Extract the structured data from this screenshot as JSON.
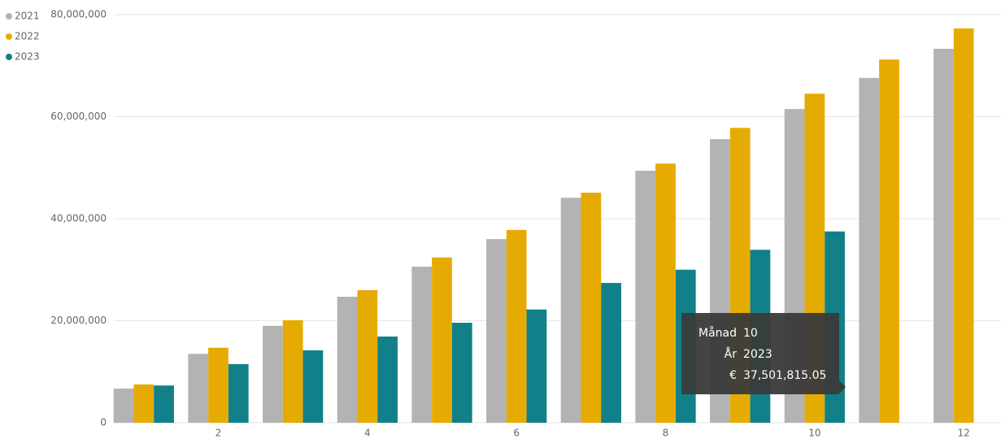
{
  "chart_data": {
    "type": "bar",
    "categories": [
      null,
      "2",
      null,
      "4",
      null,
      "6",
      null,
      "8",
      null,
      "10",
      null,
      "12"
    ],
    "series": [
      {
        "name": "2021",
        "color": "#b3b3b3",
        "values": [
          6700000,
          13500000,
          19000000,
          24700000,
          30600000,
          36000000,
          44100000,
          49400000,
          55600000,
          61500000,
          67600000,
          73300000
        ]
      },
      {
        "name": "2022",
        "color": "#e6ab02",
        "values": [
          7500000,
          14700000,
          20100000,
          26000000,
          32400000,
          37800000,
          45100000,
          50800000,
          57800000,
          64500000,
          71200000,
          77300000
        ]
      },
      {
        "name": "2023",
        "color": "#118089",
        "values": [
          7300000,
          11500000,
          14200000,
          16900000,
          19600000,
          22200000,
          27400000,
          30000000,
          33900000,
          37501815.05,
          null,
          null
        ]
      }
    ],
    "ylim": [
      0,
      80000000
    ],
    "yticks": [
      0,
      {
        "value": 20000000,
        "label": "20,000,000"
      },
      {
        "value": 40000000,
        "label": "40,000,000"
      },
      {
        "value": 60000000,
        "label": "60,000,000"
      },
      {
        "value": 80000000,
        "label": "80,000,000"
      }
    ],
    "grid": true,
    "legend": "top-left",
    "tooltip": [
      {
        "label": "Månad",
        "value": "10"
      },
      {
        "label": "År",
        "value": "2023"
      },
      {
        "label": "€",
        "value": "37,501,815.05"
      }
    ]
  }
}
